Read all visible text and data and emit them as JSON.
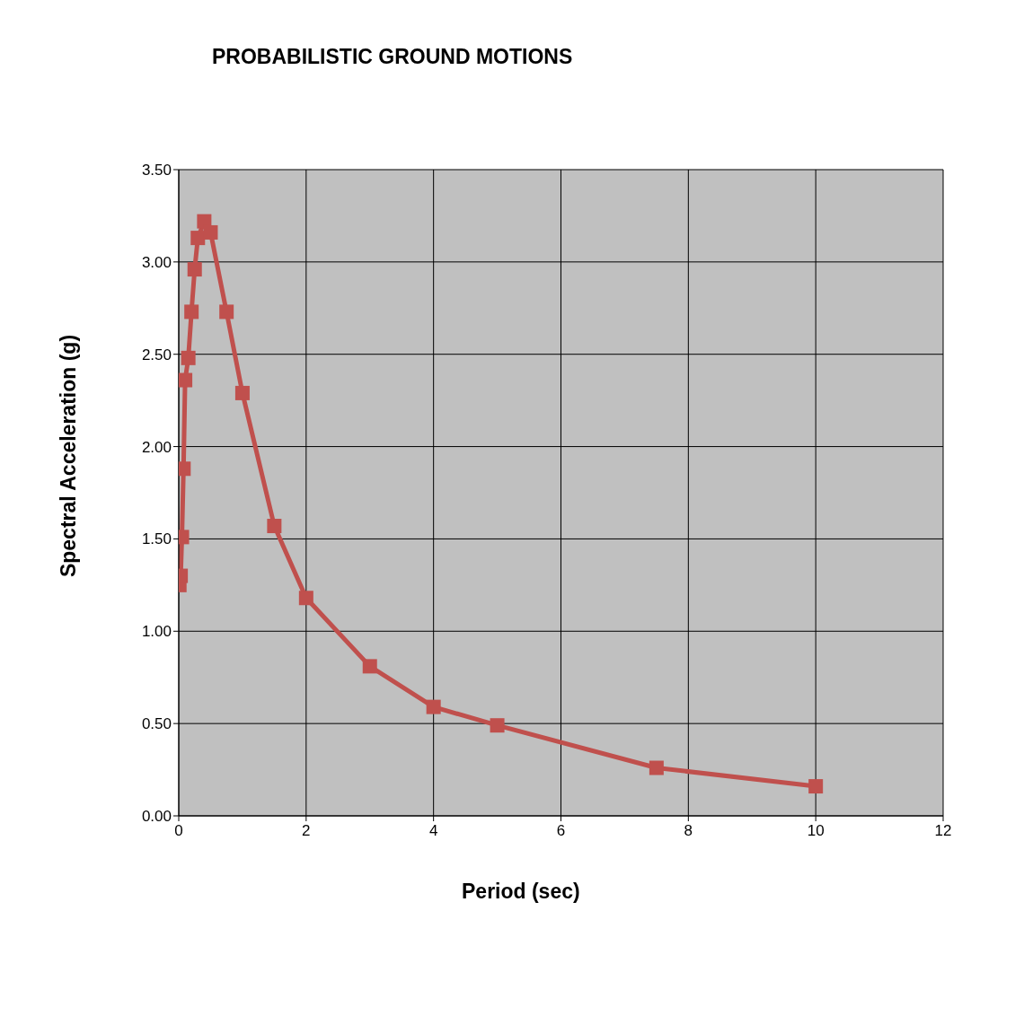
{
  "chart_data": {
    "type": "line",
    "title": "PROBABILISTIC GROUND MOTIONS",
    "xlabel": "Period (sec)",
    "ylabel": "Spectral Acceleration (g)",
    "x": [
      0.01,
      0.03,
      0.05,
      0.075,
      0.1,
      0.15,
      0.2,
      0.25,
      0.3,
      0.4,
      0.5,
      0.75,
      1.0,
      1.5,
      2,
      3,
      4,
      5,
      7.5,
      10
    ],
    "series": [
      {
        "color": "#c0504d",
        "values": [
          1.25,
          1.3,
          1.51,
          1.88,
          2.36,
          2.48,
          2.73,
          2.96,
          3.13,
          3.22,
          3.16,
          2.73,
          2.29,
          1.57,
          1.18,
          0.81,
          0.59,
          0.49,
          0.26,
          0.16
        ]
      }
    ],
    "xlim": [
      0,
      12
    ],
    "xticks": [
      0,
      2,
      4,
      6,
      8,
      10,
      12
    ],
    "ylim": [
      0,
      3.5
    ],
    "yticks": [
      {
        "value": 0,
        "label": "0.00"
      },
      {
        "value": 0.5,
        "label": "0.50"
      },
      {
        "value": 1,
        "label": "1.00"
      },
      {
        "value": 1.5,
        "label": "1.50"
      },
      {
        "value": 2,
        "label": "2.00"
      },
      {
        "value": 2.5,
        "label": "2.50"
      },
      {
        "value": 3,
        "label": "3.00"
      },
      {
        "value": 3.5,
        "label": "3.50"
      }
    ],
    "grid": true,
    "legend": false,
    "marker": "square",
    "line_style": "solid"
  }
}
